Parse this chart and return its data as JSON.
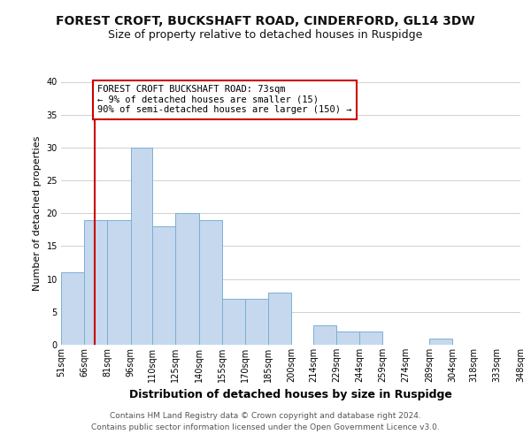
{
  "title": "FOREST CROFT, BUCKSHAFT ROAD, CINDERFORD, GL14 3DW",
  "subtitle": "Size of property relative to detached houses in Ruspidge",
  "xlabel": "Distribution of detached houses by size in Ruspidge",
  "ylabel": "Number of detached properties",
  "bar_color": "#c5d8ee",
  "bar_edge_color": "#7bafd4",
  "bins": [
    51,
    66,
    81,
    96,
    110,
    125,
    140,
    155,
    170,
    185,
    200,
    214,
    229,
    244,
    259,
    274,
    289,
    304,
    318,
    333,
    348
  ],
  "bin_labels": [
    "51sqm",
    "66sqm",
    "81sqm",
    "96sqm",
    "110sqm",
    "125sqm",
    "140sqm",
    "155sqm",
    "170sqm",
    "185sqm",
    "200sqm",
    "214sqm",
    "229sqm",
    "244sqm",
    "259sqm",
    "274sqm",
    "289sqm",
    "304sqm",
    "318sqm",
    "333sqm",
    "348sqm"
  ],
  "counts": [
    11,
    19,
    19,
    30,
    18,
    20,
    19,
    7,
    7,
    8,
    0,
    3,
    2,
    2,
    0,
    0,
    1,
    0,
    0,
    0
  ],
  "ylim": [
    0,
    40
  ],
  "yticks": [
    0,
    5,
    10,
    15,
    20,
    25,
    30,
    35,
    40
  ],
  "property_line_x": 73,
  "property_line_color": "#cc0000",
  "annotation_text": "FOREST CROFT BUCKSHAFT ROAD: 73sqm\n← 9% of detached houses are smaller (15)\n90% of semi-detached houses are larger (150) →",
  "annotation_box_color": "#ffffff",
  "annotation_box_edge_color": "#cc0000",
  "footer_text": "Contains HM Land Registry data © Crown copyright and database right 2024.\nContains public sector information licensed under the Open Government Licence v3.0.",
  "background_color": "#ffffff",
  "grid_color": "#d0d0d0",
  "title_fontsize": 10,
  "subtitle_fontsize": 9,
  "ylabel_fontsize": 8,
  "xlabel_fontsize": 9,
  "tick_fontsize": 7,
  "footer_fontsize": 6.5,
  "annotation_fontsize": 7.5
}
